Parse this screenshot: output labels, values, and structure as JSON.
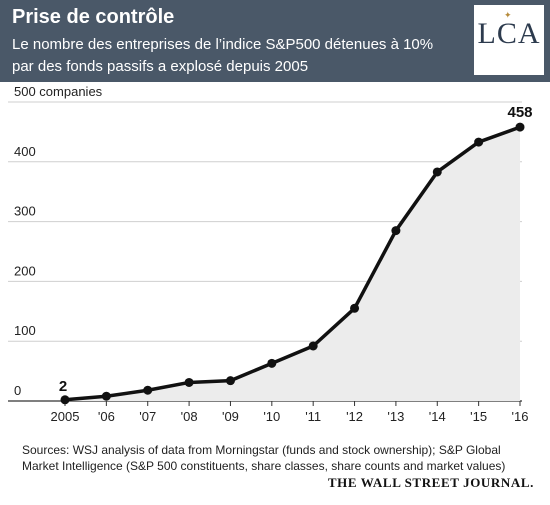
{
  "header": {
    "title": "Prise de contrôle",
    "subtitle": "Le nombre des entreprises de l’indice S&P500 détenues à 10% par des fonds passifs a explosé depuis 2005",
    "logo_text": "LCA",
    "background": "#4a5868"
  },
  "chart_data": {
    "type": "area",
    "title": "",
    "xlabel": "",
    "ylabel": "",
    "y_unit_label": "500 companies",
    "x": [
      2005,
      2006,
      2007,
      2008,
      2009,
      2010,
      2011,
      2012,
      2013,
      2014,
      2015,
      2016
    ],
    "x_tick_labels": [
      "2005",
      "'06",
      "'07",
      "'08",
      "'09",
      "'10",
      "'11",
      "'12",
      "'13",
      "'14",
      "'15",
      "'16"
    ],
    "series": [
      {
        "values": [
          2,
          8,
          18,
          31,
          34,
          63,
          92,
          155,
          285,
          383,
          433,
          458
        ]
      }
    ],
    "y_ticks": [
      0,
      100,
      200,
      300,
      400
    ],
    "ylim": [
      0,
      500
    ],
    "grid": true,
    "labeled_points": [
      {
        "x": 2005,
        "label": "2"
      },
      {
        "x": 2016,
        "label": "458"
      }
    ],
    "line_color": "#111111",
    "fill_color": "#ececec",
    "grid_color": "#cfcfcf"
  },
  "footer": {
    "source_line1": "Sources: WSJ analysis of data from Morningstar (funds and stock ownership); S&P Global",
    "source_line2": "Market Intelligence (S&P 500 constituents, share classes, share counts and market values)",
    "publisher": "THE WALL STREET JOURNAL."
  }
}
